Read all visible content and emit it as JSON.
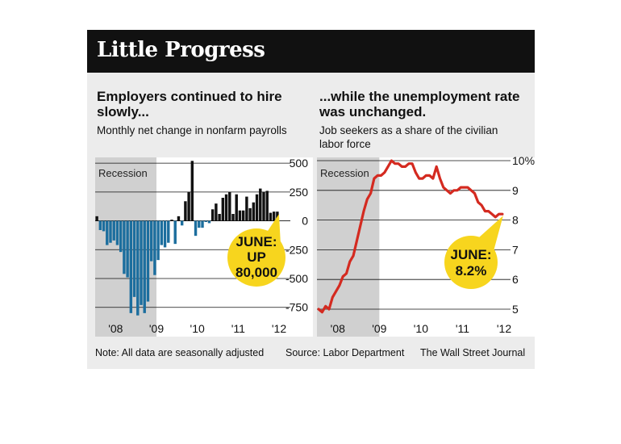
{
  "title": "Little Progress",
  "left_panel": {
    "headline": "Employers continued to hire slowly...",
    "subhead": "Monthly net change in nonfarm payrolls",
    "recession_label": "Recession",
    "callout": [
      "JUNE:",
      "UP",
      "80,000"
    ]
  },
  "right_panel": {
    "headline": "...while the unemployment rate was unchanged.",
    "subhead": "Job seekers as a share of the civilian labor force",
    "recession_label": "Recession",
    "callout": [
      "JUNE:",
      "8.2%"
    ]
  },
  "footer": {
    "note": "Note: All data are seasonally adjusted",
    "source": "Source: Labor Department",
    "credit": "The Wall Street Journal"
  },
  "colors": {
    "background": "#ececec",
    "header": "#111111",
    "recession_shade": "#d0d0d0",
    "negative_bars": "#1c6e9e",
    "positive_bars": "#111111",
    "rate_line": "#d42a20",
    "callout": "#f7d51e"
  },
  "chart_data": [
    {
      "type": "bar",
      "x_start": "2008-01",
      "frequency": "monthly",
      "x_tick_labels": [
        "'08",
        "'09",
        "'10",
        "'11",
        "'12"
      ],
      "y_ticks": [
        500,
        250,
        0,
        -250,
        -500,
        -750
      ],
      "ylim": [
        -850,
        550
      ],
      "recession": [
        "2008-01",
        "2009-06"
      ],
      "values": [
        40,
        -80,
        -90,
        -210,
        -190,
        -170,
        -210,
        -270,
        -460,
        -490,
        -800,
        -660,
        -820,
        -730,
        -800,
        -700,
        -350,
        -470,
        -340,
        -210,
        -230,
        -190,
        10,
        -200,
        40,
        -40,
        170,
        250,
        520,
        -130,
        -60,
        -60,
        -10,
        -20,
        100,
        150,
        60,
        200,
        230,
        250,
        60,
        230,
        90,
        90,
        210,
        110,
        160,
        230,
        280,
        250,
        260,
        70,
        80,
        80
      ]
    },
    {
      "type": "line",
      "x_start": "2008-01",
      "frequency": "monthly",
      "x_tick_labels": [
        "'08",
        "'09",
        "'10",
        "'11",
        "'12"
      ],
      "y_ticks": [
        "10%",
        "9",
        "8",
        "7",
        "6",
        "5"
      ],
      "ylim": [
        4.5,
        10
      ],
      "recession": [
        "2008-01",
        "2009-06"
      ],
      "values": [
        5.0,
        4.9,
        5.1,
        5.0,
        5.4,
        5.6,
        5.8,
        6.1,
        6.2,
        6.6,
        6.8,
        7.3,
        7.8,
        8.3,
        8.7,
        8.9,
        9.4,
        9.5,
        9.5,
        9.6,
        9.8,
        10.0,
        9.9,
        9.9,
        9.8,
        9.8,
        9.9,
        9.9,
        9.6,
        9.4,
        9.4,
        9.5,
        9.5,
        9.4,
        9.8,
        9.4,
        9.1,
        9.0,
        8.9,
        9.0,
        9.0,
        9.1,
        9.1,
        9.1,
        9.0,
        8.9,
        8.6,
        8.5,
        8.3,
        8.3,
        8.2,
        8.1,
        8.2,
        8.2
      ]
    }
  ]
}
